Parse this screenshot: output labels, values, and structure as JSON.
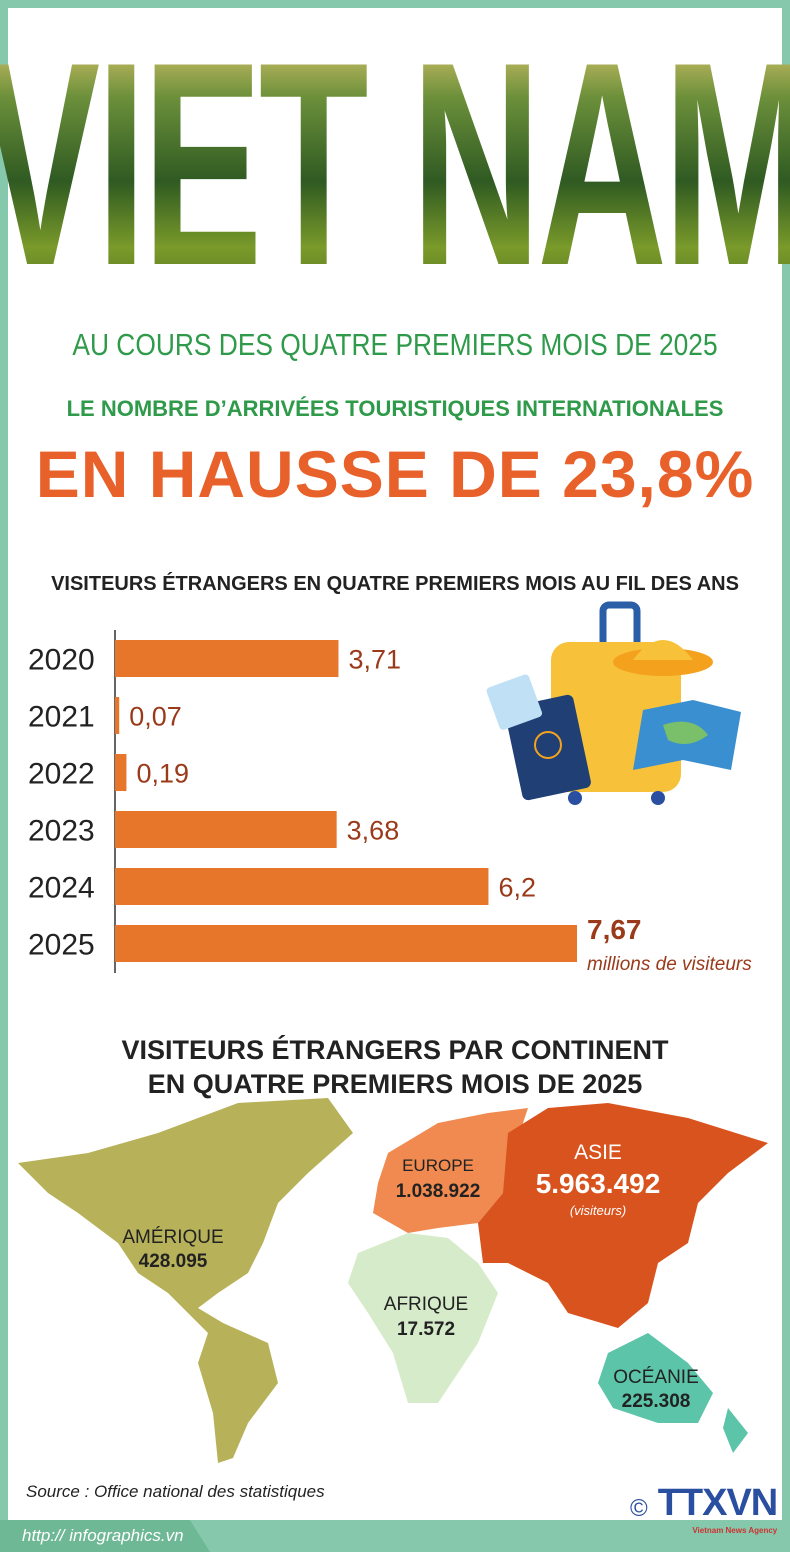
{
  "hero_title": "VIET NAM",
  "subtitle": "AU COURS DES QUATRE PREMIERS MOIS DE 2025",
  "headline": "LE NOMBRE D’ARRIVÉES TOURISTIQUES INTERNATIONALES",
  "highlight": "EN HAUSSE DE 23,8%",
  "chart_data": [
    {
      "type": "bar",
      "orientation": "horizontal",
      "title": "VISITEURS ÉTRANGERS EN QUATRE PREMIERS MOIS AU FIL DES ANS",
      "categories": [
        "2020",
        "2021",
        "2022",
        "2023",
        "2024",
        "2025"
      ],
      "values": [
        3.71,
        0.07,
        0.19,
        3.68,
        6.2,
        7.67
      ],
      "labels": [
        "3,71",
        "0,07",
        "0,19",
        "3,68",
        "6,2",
        "7,67"
      ],
      "unit": "millions de visiteurs",
      "bar_color": "#e8762a",
      "label_color": "#9a3a1a",
      "xlim": [
        0,
        8
      ]
    },
    {
      "type": "map",
      "title_lines": [
        "VISITEURS ÉTRANGERS PAR CONTINENT",
        "EN QUATRE PREMIERS MOIS DE 2025"
      ],
      "regions": [
        {
          "name": "AMÉRIQUE",
          "value": "428.095",
          "color": "#b7b25a"
        },
        {
          "name": "EUROPE",
          "value": "1.038.922",
          "color": "#f08a50"
        },
        {
          "name": "ASIE",
          "value": "5.963.492",
          "note": "(visiteurs)",
          "color": "#d9531e"
        },
        {
          "name": "AFRIQUE",
          "value": "17.572",
          "color": "#d6ebc9"
        },
        {
          "name": "OCÉANIE",
          "value": "225.308",
          "color": "#5cc4a8"
        }
      ]
    }
  ],
  "source": "Source : Office national des statistiques",
  "url": "http:// infographics.vn",
  "logo": {
    "copyright": "©",
    "name": "TTXVN",
    "agency": "Vietnam News Agency"
  }
}
